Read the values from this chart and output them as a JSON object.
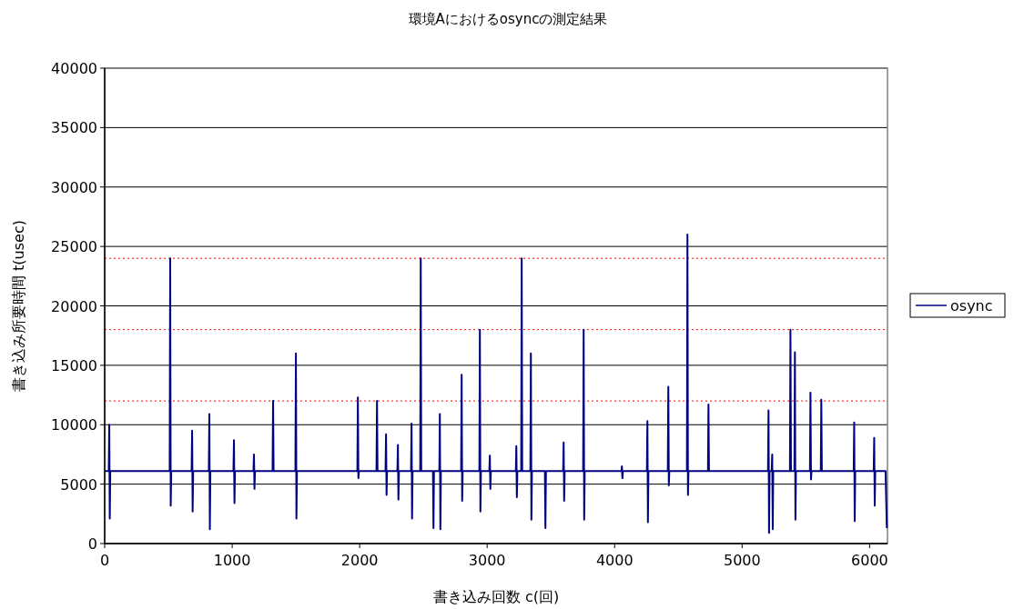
{
  "chart_data": {
    "type": "line",
    "title": "環境Aにおけるosyncの測定結果",
    "xlabel": "書き込み回数 c(回)",
    "ylabel": "書き込み所要時間 t(usec)",
    "xlim": [
      0,
      6140
    ],
    "ylim": [
      0,
      40000
    ],
    "xticks": [
      0,
      1000,
      2000,
      3000,
      4000,
      5000,
      6000
    ],
    "yticks": [
      0,
      5000,
      10000,
      15000,
      20000,
      25000,
      30000,
      35000,
      40000
    ],
    "grid": "y",
    "legend": "right",
    "marker": "none",
    "line_style": "solid",
    "ref_lines": [
      {
        "axis": "y",
        "value": 24000,
        "color": "#ff0000",
        "line_style": "dotted"
      },
      {
        "axis": "y",
        "value": 18000,
        "color": "#ff0000",
        "line_style": "dotted"
      },
      {
        "axis": "y",
        "value": 12000,
        "color": "#ff0000",
        "line_style": "dotted"
      }
    ],
    "series": [
      {
        "name": "osync",
        "color": "#000080",
        "x": [
          0,
          32,
          36,
          40,
          44,
          510,
          514,
          518,
          522,
          682,
          686,
          690,
          694,
          817,
          821,
          825,
          829,
          1010,
          1014,
          1018,
          1022,
          1167,
          1171,
          1175,
          1179,
          1317,
          1321,
          1325,
          1496,
          1500,
          1504,
          1508,
          1982,
          1986,
          1990,
          1994,
          2132,
          2136,
          2140,
          2203,
          2207,
          2211,
          2215,
          2296,
          2300,
          2304,
          2308,
          2403,
          2407,
          2411,
          2415,
          2475,
          2479,
          2483,
          2575,
          2579,
          2583,
          2625,
          2629,
          2633,
          2637,
          2796,
          2800,
          2804,
          2808,
          2939,
          2943,
          2947,
          2951,
          3017,
          3021,
          3025,
          3029,
          3225,
          3229,
          3233,
          3237,
          3267,
          3271,
          3275,
          3339,
          3343,
          3347,
          3351,
          3453,
          3457,
          3461,
          3596,
          3600,
          3604,
          3608,
          3753,
          3757,
          3761,
          3765,
          4053,
          4057,
          4061,
          4065,
          4253,
          4257,
          4261,
          4265,
          4417,
          4421,
          4425,
          4429,
          4567,
          4571,
          4575,
          4579,
          4732,
          4736,
          4740,
          5203,
          5207,
          5211,
          5215,
          5232,
          5236,
          5240,
          5244,
          5375,
          5379,
          5383,
          5410,
          5414,
          5418,
          5422,
          5532,
          5536,
          5540,
          5544,
          5617,
          5621,
          5625,
          5875,
          5879,
          5883,
          5887,
          6032,
          6036,
          6040,
          6044,
          6125,
          6135
        ],
        "values": [
          6100,
          6100,
          10000,
          2100,
          6100,
          6100,
          24000,
          3200,
          6100,
          6100,
          9500,
          2700,
          6100,
          6100,
          10900,
          1200,
          6100,
          6100,
          8700,
          3400,
          6100,
          6100,
          7500,
          4600,
          6100,
          6100,
          12000,
          6100,
          6100,
          16000,
          2100,
          6100,
          6100,
          12300,
          5500,
          6100,
          6100,
          12000,
          6100,
          6100,
          9200,
          4100,
          6100,
          6100,
          8300,
          3700,
          6100,
          6100,
          10100,
          2100,
          6100,
          6100,
          24000,
          6100,
          6100,
          1300,
          6100,
          6100,
          10900,
          1200,
          6100,
          6100,
          14200,
          3600,
          6100,
          6100,
          18000,
          2700,
          6100,
          6100,
          7400,
          4600,
          6100,
          6100,
          8200,
          3900,
          6100,
          6100,
          24000,
          6100,
          6100,
          16000,
          2000,
          6100,
          6100,
          1300,
          6100,
          6100,
          8500,
          3600,
          6100,
          6100,
          18000,
          2000,
          6100,
          6100,
          6500,
          5500,
          6100,
          6100,
          10300,
          1800,
          6100,
          6100,
          13200,
          4900,
          6100,
          6100,
          26000,
          4100,
          6100,
          6100,
          11700,
          6100,
          6100,
          11200,
          900,
          6100,
          6100,
          7500,
          1200,
          6100,
          6100,
          18000,
          6100,
          6100,
          16100,
          2000,
          6100,
          6100,
          12700,
          5400,
          6100,
          6100,
          12100,
          6100,
          6100,
          10200,
          1900,
          6100,
          6100,
          8900,
          3200,
          6100,
          6100,
          1300
        ]
      }
    ]
  }
}
